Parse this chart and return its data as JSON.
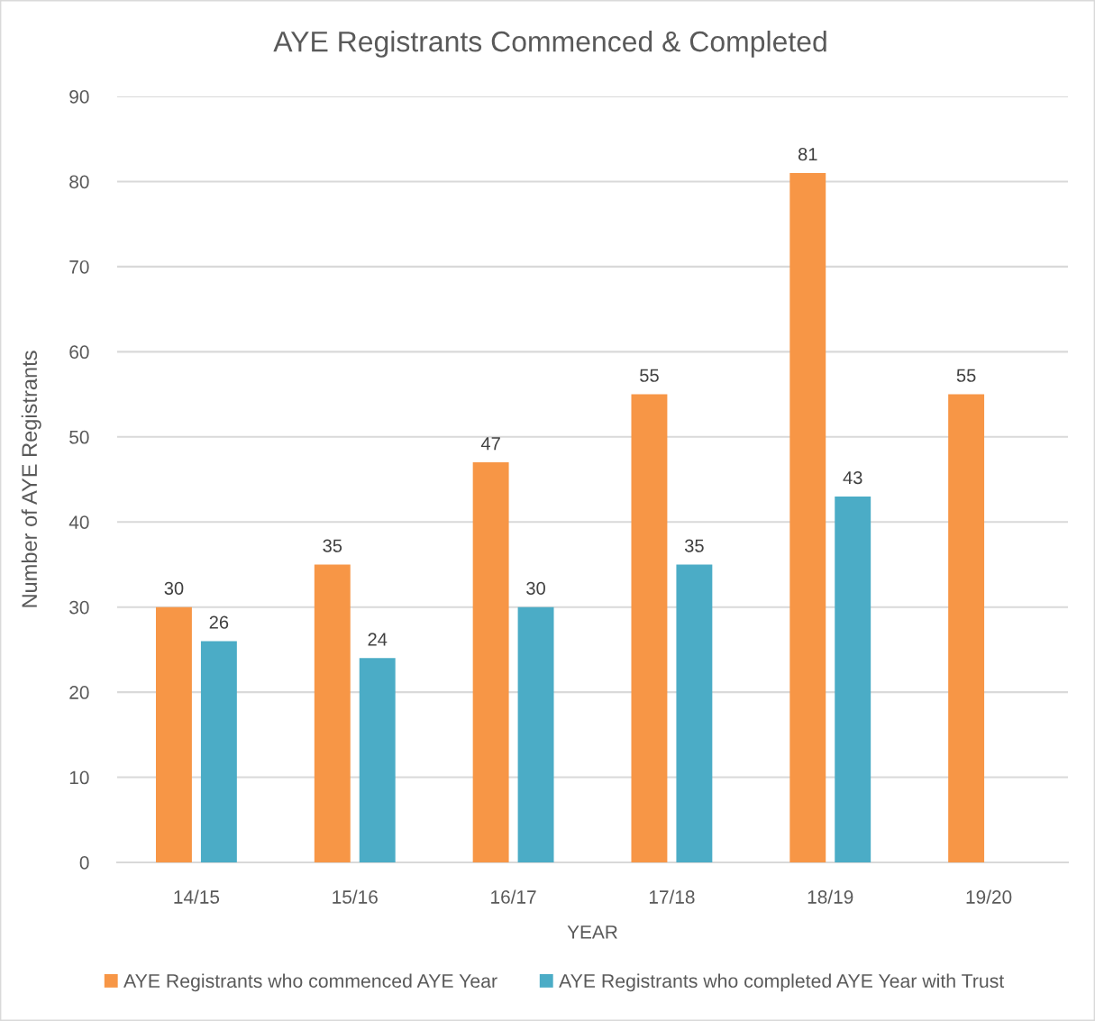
{
  "chart_data": {
    "type": "bar",
    "title": "AYE Registrants Commenced & Completed",
    "xlabel": "YEAR",
    "ylabel": "Number of AYE Registrants",
    "categories": [
      "14/15",
      "15/16",
      "16/17",
      "17/18",
      "18/19",
      "19/20"
    ],
    "series": [
      {
        "name": "AYE Registrants who commenced AYE Year",
        "color": "#f79646",
        "values": [
          30,
          35,
          47,
          55,
          81,
          55
        ]
      },
      {
        "name": "AYE Registrants who completed AYE Year with Trust",
        "color": "#4bacc6",
        "values": [
          26,
          24,
          30,
          35,
          43,
          null
        ]
      }
    ],
    "ylim": [
      0,
      90
    ],
    "yticks": [
      0,
      10,
      20,
      30,
      40,
      50,
      60,
      70,
      80,
      90
    ],
    "grid": "y",
    "legend": "bottom",
    "data_labels": true
  }
}
